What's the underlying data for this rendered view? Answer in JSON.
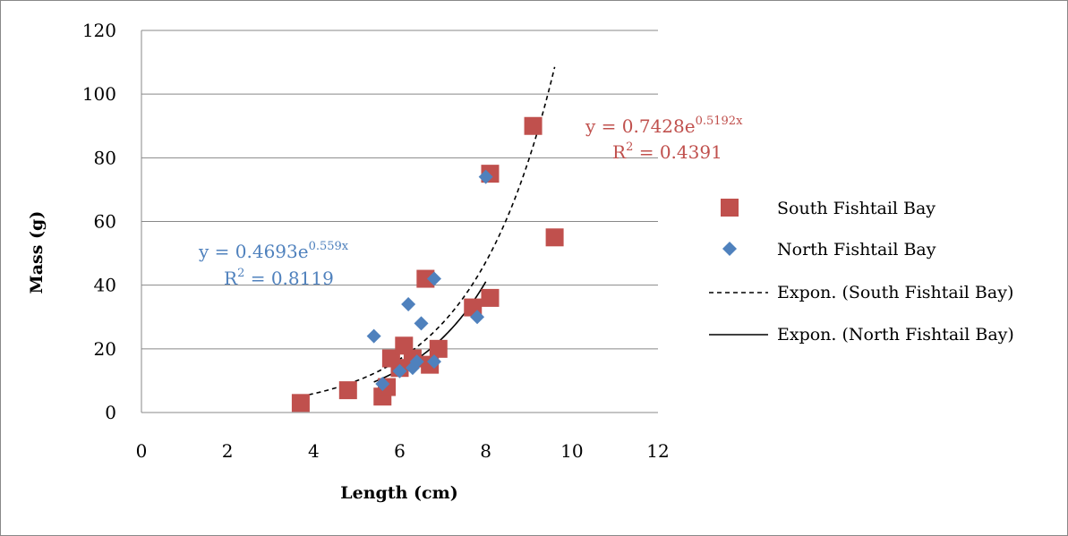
{
  "chart_data": {
    "type": "scatter",
    "xlabel": "Length (cm)",
    "ylabel": "Mass (g)",
    "xlim": [
      0,
      12
    ],
    "ylim": [
      0,
      120
    ],
    "x_ticks": [
      "0",
      "2",
      "4",
      "6",
      "8",
      "10",
      "12"
    ],
    "y_ticks": [
      "0",
      "20",
      "40",
      "60",
      "80",
      "100",
      "120"
    ],
    "grid": "horizontal",
    "legend_position": "right",
    "series": [
      {
        "name": "South Fishtail Bay",
        "marker": "square",
        "color": "#C0504D",
        "points": [
          [
            3.7,
            3
          ],
          [
            4.8,
            7
          ],
          [
            5.6,
            5
          ],
          [
            5.7,
            8
          ],
          [
            5.8,
            17
          ],
          [
            6.0,
            14
          ],
          [
            6.1,
            21
          ],
          [
            6.3,
            17
          ],
          [
            6.6,
            42
          ],
          [
            6.7,
            15
          ],
          [
            6.9,
            20
          ],
          [
            7.7,
            33
          ],
          [
            8.1,
            36
          ],
          [
            8.1,
            75
          ],
          [
            9.1,
            90
          ],
          [
            9.6,
            55
          ]
        ]
      },
      {
        "name": "North Fishtail Bay",
        "marker": "diamond",
        "color": "#4F81BD",
        "points": [
          [
            5.4,
            24
          ],
          [
            5.6,
            9
          ],
          [
            6.0,
            13
          ],
          [
            6.2,
            34
          ],
          [
            6.3,
            14
          ],
          [
            6.4,
            16
          ],
          [
            6.5,
            28
          ],
          [
            6.8,
            42
          ],
          [
            6.8,
            16
          ],
          [
            7.8,
            30
          ],
          [
            8.0,
            74
          ]
        ]
      }
    ],
    "trendlines": [
      {
        "name": "Expon. (South Fishtail Bay)",
        "style": "dashed",
        "color": "#000000",
        "a": 0.7428,
        "b": 0.5192,
        "x_range": [
          3.7,
          9.6
        ],
        "equation_base": "y = 0.7428e",
        "equation_exp": "0.5192x",
        "r2_label": "R",
        "r2_sup": "2",
        "r2_value": " = 0.4391"
      },
      {
        "name": "Expon. (North Fishtail Bay)",
        "style": "solid",
        "color": "#000000",
        "a": 0.4693,
        "b": 0.559,
        "x_range": [
          5.4,
          8.0
        ],
        "equation_base": "y = 0.4693e",
        "equation_exp": "0.559x",
        "r2_label": "R",
        "r2_sup": "2",
        "r2_value": " = 0.8119"
      }
    ]
  }
}
